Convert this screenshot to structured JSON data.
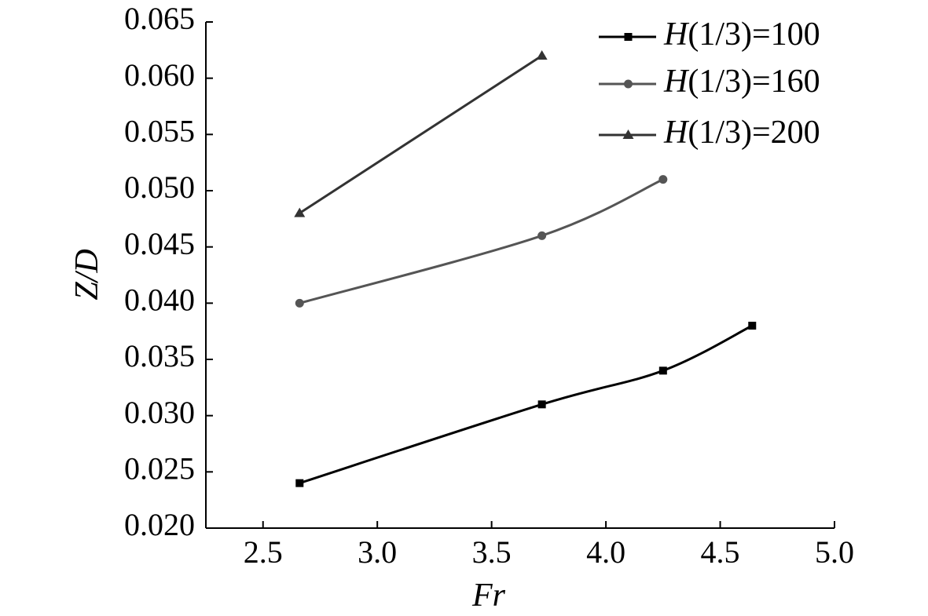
{
  "chart_data": {
    "type": "line",
    "title": "",
    "xlabel": "Fr",
    "ylabel": "Z/D",
    "xlim": [
      2.25,
      5.0
    ],
    "ylim": [
      0.02,
      0.065
    ],
    "xticks": [
      2.5,
      3.0,
      3.5,
      4.0,
      4.5,
      5.0
    ],
    "xtick_labels": [
      "2.5",
      "3.0",
      "3.5",
      "4.0",
      "4.5",
      "5.0"
    ],
    "yticks": [
      0.02,
      0.025,
      0.03,
      0.035,
      0.04,
      0.045,
      0.05,
      0.055,
      0.06,
      0.065
    ],
    "ytick_labels": [
      "0.020",
      "0.025",
      "0.030",
      "0.035",
      "0.040",
      "0.045",
      "0.050",
      "0.055",
      "0.060",
      "0.065"
    ],
    "grid": false,
    "legend_position": "top-right",
    "series": [
      {
        "name": "H(1/3)=100",
        "name_italic": "H",
        "name_rest": "(1/3)=100",
        "marker": "square",
        "color": "#000000",
        "x": [
          2.66,
          3.72,
          4.25,
          4.64
        ],
        "y": [
          0.024,
          0.031,
          0.034,
          0.038
        ]
      },
      {
        "name": "H(1/3)=160",
        "name_italic": "H",
        "name_rest": "(1/3)=160",
        "marker": "circle",
        "color": "#555555",
        "x": [
          2.66,
          3.72,
          4.25
        ],
        "y": [
          0.04,
          0.046,
          0.051
        ]
      },
      {
        "name": "H(1/3)=200",
        "name_italic": "H",
        "name_rest": "(1/3)=200",
        "marker": "triangle",
        "color": "#333333",
        "x": [
          2.66,
          3.72
        ],
        "y": [
          0.048,
          0.062
        ]
      }
    ]
  }
}
